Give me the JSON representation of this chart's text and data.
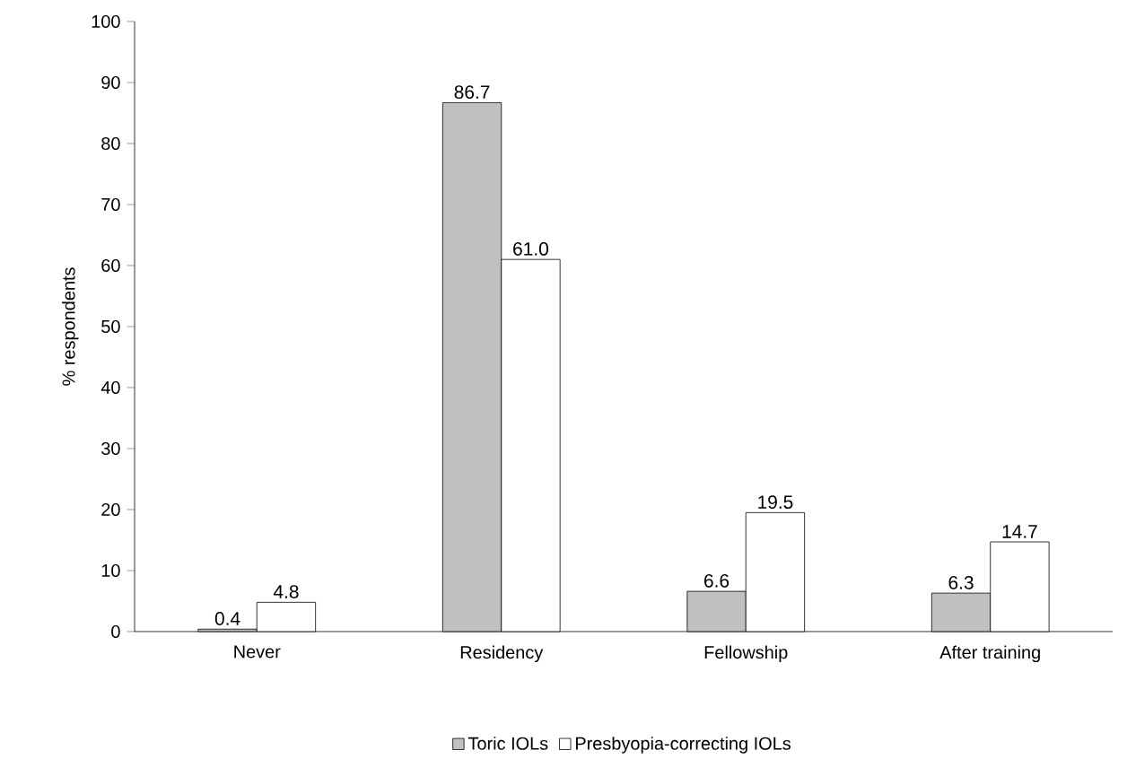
{
  "chart_data": {
    "type": "bar",
    "ylabel": "% respondents",
    "categories": [
      "Never",
      "Residency",
      "Fellowship",
      "After training"
    ],
    "series": [
      {
        "name": "Toric IOLs",
        "color": "#c0c0c0",
        "values": [
          0.4,
          86.7,
          6.6,
          6.3
        ],
        "value_labels": [
          "0.4",
          "86.7",
          "6.6",
          "6.3"
        ]
      },
      {
        "name": "Presbyopia-correcting IOLs",
        "color": "#ffffff",
        "values": [
          4.8,
          61.0,
          19.5,
          14.7
        ],
        "value_labels": [
          "4.8",
          "61.0",
          "19.5",
          "14.7"
        ]
      }
    ],
    "ylim": [
      0,
      100
    ],
    "yticks": [
      0,
      10,
      20,
      30,
      40,
      50,
      60,
      70,
      80,
      90,
      100
    ],
    "legend": "bottom"
  }
}
